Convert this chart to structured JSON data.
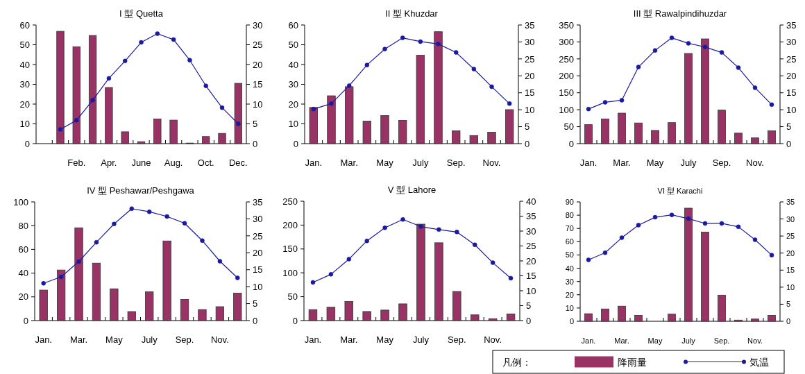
{
  "chart_data": [
    {
      "type": "bar",
      "title": "I 型 Quetta",
      "categories": [
        null,
        null,
        "Feb.",
        null,
        "Apr.",
        null,
        "June",
        null,
        "Aug.",
        null,
        "Oct.",
        null,
        "Dec."
      ],
      "ylim": [
        0,
        60
      ],
      "yticks": [
        0,
        10,
        20,
        30,
        40,
        50,
        60
      ],
      "y2lim": [
        0,
        30
      ],
      "y2ticks": [
        0,
        5,
        10,
        15,
        20,
        25,
        30
      ],
      "marker": "circle",
      "series": [
        {
          "color": "#993366",
          "values": [
            null,
            56.8,
            49,
            54.7,
            28.4,
            6,
            1,
            12.5,
            11.9,
            0.3,
            3.6,
            5.2,
            30.5
          ]
        },
        {
          "type": "line",
          "axis": "y2",
          "color": "#1a1aa0",
          "values": [
            null,
            3.6,
            5.9,
            11,
            16.5,
            20.9,
            25.6,
            27.8,
            26.3,
            21.1,
            14.6,
            9.1,
            5.0
          ]
        }
      ]
    },
    {
      "type": "bar",
      "title": "II  型  Khuzdar",
      "categories": [
        "Jan.",
        null,
        "Mar.",
        null,
        "May",
        null,
        "July",
        null,
        "Sep.",
        null,
        "Nov.",
        null
      ],
      "ylim": [
        0,
        60
      ],
      "yticks": [
        0,
        10,
        20,
        30,
        40,
        50,
        60
      ],
      "y2lim": [
        0,
        35
      ],
      "y2ticks": [
        0,
        5,
        10,
        15,
        20,
        25,
        30,
        35
      ],
      "marker": "circle",
      "series": [
        {
          "color": "#993366",
          "values": [
            18.3,
            24.2,
            28.8,
            11.4,
            14.2,
            11.8,
            44.7,
            56.6,
            6.5,
            4.1,
            5.8,
            17.2
          ]
        },
        {
          "type": "line",
          "axis": "y2",
          "color": "#1a1aa0",
          "values": [
            10.2,
            11.8,
            17.1,
            23.2,
            27.9,
            31.2,
            30.1,
            29.4,
            26.9,
            22,
            16.8,
            11.8
          ]
        }
      ]
    },
    {
      "type": "bar",
      "title": "III 型 Rawalpindihuzdar",
      "categories": [
        "Jan.",
        null,
        "Mar.",
        null,
        "May",
        null,
        "July",
        null,
        "Sep.",
        null,
        "Nov.",
        null
      ],
      "ylim": [
        0,
        350
      ],
      "yticks": [
        0,
        50,
        100,
        150,
        200,
        250,
        300,
        350
      ],
      "y2lim": [
        0,
        35
      ],
      "y2ticks": [
        0,
        5,
        10,
        15,
        20,
        25,
        30,
        35
      ],
      "marker": "circle",
      "series": [
        {
          "color": "#993366",
          "values": [
            56,
            73,
            90,
            61,
            39,
            62,
            266,
            309,
            99,
            31,
            17,
            38
          ]
        },
        {
          "type": "line",
          "axis": "y2",
          "color": "#1a1aa0",
          "values": [
            10.2,
            12.2,
            12.8,
            22.6,
            27.5,
            31.2,
            29.6,
            28.5,
            26.9,
            22.4,
            16.5,
            11.5
          ]
        }
      ]
    },
    {
      "type": "bar",
      "title": "IV 型  Peshawar/Peshgawa",
      "categories": [
        "Jan.",
        null,
        "Mar.",
        null,
        "May",
        null,
        "July",
        null,
        "Sep.",
        null,
        "Nov.",
        null
      ],
      "ylim": [
        0,
        100
      ],
      "yticks": [
        0,
        20,
        40,
        60,
        80,
        100
      ],
      "y2lim": [
        0,
        35
      ],
      "y2ticks": [
        0,
        5,
        10,
        15,
        20,
        25,
        30,
        35
      ],
      "marker": "circle",
      "series": [
        {
          "color": "#993366",
          "values": [
            25.7,
            42.6,
            78.2,
            48.4,
            26.8,
            7.6,
            24.3,
            67.1,
            17.9,
            9.3,
            11.7,
            23.2
          ]
        },
        {
          "type": "line",
          "axis": "y2",
          "color": "#1a1aa0",
          "values": [
            11,
            12.9,
            17.4,
            23.1,
            28.5,
            33,
            32.1,
            30.7,
            28.7,
            23.6,
            17.5,
            12.6
          ]
        }
      ]
    },
    {
      "type": "bar",
      "title": "V 型 Lahore",
      "categories": [
        "Jan.",
        null,
        "Mar.",
        null,
        "May",
        null,
        "July",
        null,
        "Sep.",
        null,
        "Nov.",
        null
      ],
      "ylim": [
        0,
        250
      ],
      "yticks": [
        0,
        50,
        100,
        150,
        200,
        250
      ],
      "y2lim": [
        0,
        40
      ],
      "y2ticks": [
        0,
        5,
        10,
        15,
        20,
        25,
        30,
        35,
        40
      ],
      "marker": "circle",
      "series": [
        {
          "color": "#993366",
          "values": [
            23,
            28,
            40,
            19,
            22,
            35,
            202,
            163,
            61,
            12,
            4,
            14
          ]
        },
        {
          "type": "line",
          "axis": "y2",
          "color": "#1a1aa0",
          "values": [
            12.8,
            15.5,
            20.6,
            26.7,
            31.1,
            33.9,
            31.5,
            30.5,
            29.7,
            25.4,
            19.4,
            14.2
          ]
        }
      ]
    },
    {
      "type": "bar",
      "title": "VI 型  Karachi",
      "categories": [
        "Jan.",
        null,
        "Mar.",
        null,
        "May",
        null,
        "July",
        null,
        "Sep.",
        null,
        "Nov.",
        null
      ],
      "ylim": [
        0,
        90
      ],
      "yticks": [
        0,
        10,
        20,
        30,
        40,
        50,
        60,
        70,
        80,
        90
      ],
      "y2lim": [
        0,
        35
      ],
      "y2ticks": [
        0,
        5,
        10,
        15,
        20,
        25,
        30,
        35
      ],
      "marker": "circle",
      "legend": "bottom",
      "legend_title": "凡例：",
      "series": [
        {
          "name": "降雨量",
          "color": "#993366",
          "values": [
            5.7,
            9.3,
            11.4,
            4.5,
            0,
            5.4,
            85.3,
            67.3,
            19.7,
            0.9,
            1.7,
            4.5
          ]
        },
        {
          "type": "line",
          "axis": "y2",
          "name": "気温",
          "color": "#1a1aa0",
          "values": [
            18,
            20.1,
            24.5,
            28.2,
            30.5,
            31.2,
            30.1,
            28.7,
            28.7,
            27.7,
            23.9,
            19.4
          ]
        }
      ]
    }
  ]
}
